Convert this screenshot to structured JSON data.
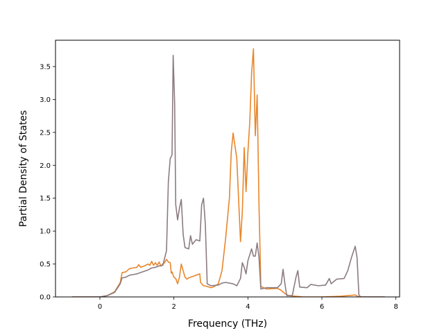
{
  "chart_data": {
    "type": "line",
    "xlabel": "Frequency (THz)",
    "ylabel": "Partial Density of States",
    "xlim": [
      -1.2,
      8.1
    ],
    "ylim": [
      0,
      3.9
    ],
    "x_ticks": [
      0,
      2,
      4,
      6,
      8
    ],
    "y_ticks": [
      0.0,
      0.5,
      1.0,
      1.5,
      2.0,
      2.5,
      3.0,
      3.5
    ],
    "x_tick_labels": [
      "0",
      "2",
      "4",
      "6",
      "8"
    ],
    "y_tick_labels": [
      "0.0",
      "0.5",
      "1.0",
      "1.5",
      "2.0",
      "2.5",
      "3.0",
      "3.5"
    ],
    "grid": false,
    "legend": "none",
    "series": [
      {
        "color": "#e8862a",
        "points": [
          [
            -0.75,
            0.0
          ],
          [
            0.0,
            0.0
          ],
          [
            0.2,
            0.02
          ],
          [
            0.4,
            0.08
          ],
          [
            0.55,
            0.22
          ],
          [
            0.6,
            0.37
          ],
          [
            0.7,
            0.38
          ],
          [
            0.8,
            0.43
          ],
          [
            0.9,
            0.44
          ],
          [
            1.0,
            0.45
          ],
          [
            1.05,
            0.49
          ],
          [
            1.1,
            0.45
          ],
          [
            1.2,
            0.47
          ],
          [
            1.3,
            0.5
          ],
          [
            1.35,
            0.48
          ],
          [
            1.4,
            0.54
          ],
          [
            1.45,
            0.48
          ],
          [
            1.5,
            0.52
          ],
          [
            1.55,
            0.48
          ],
          [
            1.6,
            0.53
          ],
          [
            1.65,
            0.47
          ],
          [
            1.7,
            0.5
          ],
          [
            1.75,
            0.52
          ],
          [
            1.8,
            0.57
          ],
          [
            1.85,
            0.53
          ],
          [
            1.9,
            0.52
          ],
          [
            1.93,
            0.36
          ],
          [
            1.95,
            0.38
          ],
          [
            2.0,
            0.3
          ],
          [
            2.05,
            0.28
          ],
          [
            2.1,
            0.2
          ],
          [
            2.15,
            0.3
          ],
          [
            2.2,
            0.5
          ],
          [
            2.25,
            0.4
          ],
          [
            2.3,
            0.3
          ],
          [
            2.35,
            0.27
          ],
          [
            2.4,
            0.29
          ],
          [
            2.5,
            0.31
          ],
          [
            2.6,
            0.33
          ],
          [
            2.7,
            0.35
          ],
          [
            2.72,
            0.22
          ],
          [
            2.8,
            0.17
          ],
          [
            2.9,
            0.16
          ],
          [
            3.0,
            0.14
          ],
          [
            3.1,
            0.16
          ],
          [
            3.2,
            0.2
          ],
          [
            3.3,
            0.4
          ],
          [
            3.4,
            0.9
          ],
          [
            3.5,
            1.5
          ],
          [
            3.55,
            2.2
          ],
          [
            3.6,
            2.49
          ],
          [
            3.7,
            2.1
          ],
          [
            3.8,
            0.84
          ],
          [
            3.85,
            1.3
          ],
          [
            3.9,
            2.27
          ],
          [
            3.95,
            1.6
          ],
          [
            4.0,
            2.2
          ],
          [
            4.05,
            2.65
          ],
          [
            4.1,
            3.4
          ],
          [
            4.15,
            3.77
          ],
          [
            4.2,
            2.45
          ],
          [
            4.25,
            3.07
          ],
          [
            4.3,
            1.4
          ],
          [
            4.35,
            0.16
          ],
          [
            4.5,
            0.12
          ],
          [
            4.8,
            0.13
          ],
          [
            4.9,
            0.1
          ],
          [
            5.0,
            0.05
          ],
          [
            5.1,
            0.02
          ],
          [
            5.5,
            0.0
          ],
          [
            6.0,
            0.0
          ],
          [
            6.5,
            0.01
          ],
          [
            6.9,
            0.03
          ],
          [
            7.0,
            0.0
          ],
          [
            7.7,
            0.0
          ]
        ]
      },
      {
        "color": "#8b7b80",
        "points": [
          [
            -0.75,
            0.0
          ],
          [
            0.0,
            0.0
          ],
          [
            0.2,
            0.02
          ],
          [
            0.4,
            0.07
          ],
          [
            0.55,
            0.2
          ],
          [
            0.6,
            0.29
          ],
          [
            0.7,
            0.3
          ],
          [
            0.8,
            0.33
          ],
          [
            0.9,
            0.34
          ],
          [
            1.0,
            0.35
          ],
          [
            1.1,
            0.37
          ],
          [
            1.2,
            0.39
          ],
          [
            1.3,
            0.41
          ],
          [
            1.4,
            0.44
          ],
          [
            1.5,
            0.45
          ],
          [
            1.6,
            0.47
          ],
          [
            1.7,
            0.48
          ],
          [
            1.8,
            0.7
          ],
          [
            1.85,
            1.75
          ],
          [
            1.9,
            2.1
          ],
          [
            1.95,
            2.16
          ],
          [
            1.98,
            3.67
          ],
          [
            2.02,
            2.95
          ],
          [
            2.05,
            1.4
          ],
          [
            2.1,
            1.17
          ],
          [
            2.15,
            1.35
          ],
          [
            2.2,
            1.48
          ],
          [
            2.25,
            0.95
          ],
          [
            2.3,
            0.75
          ],
          [
            2.4,
            0.73
          ],
          [
            2.45,
            0.93
          ],
          [
            2.5,
            0.8
          ],
          [
            2.6,
            0.87
          ],
          [
            2.7,
            0.85
          ],
          [
            2.75,
            1.4
          ],
          [
            2.8,
            1.5
          ],
          [
            2.85,
            1.1
          ],
          [
            2.9,
            0.2
          ],
          [
            3.0,
            0.17
          ],
          [
            3.2,
            0.18
          ],
          [
            3.3,
            0.21
          ],
          [
            3.4,
            0.22
          ],
          [
            3.6,
            0.2
          ],
          [
            3.7,
            0.17
          ],
          [
            3.8,
            0.28
          ],
          [
            3.85,
            0.52
          ],
          [
            3.9,
            0.45
          ],
          [
            3.95,
            0.35
          ],
          [
            4.0,
            0.55
          ],
          [
            4.1,
            0.73
          ],
          [
            4.15,
            0.62
          ],
          [
            4.2,
            0.62
          ],
          [
            4.25,
            0.82
          ],
          [
            4.3,
            0.6
          ],
          [
            4.35,
            0.12
          ],
          [
            4.5,
            0.14
          ],
          [
            4.8,
            0.14
          ],
          [
            4.9,
            0.2
          ],
          [
            4.95,
            0.42
          ],
          [
            5.0,
            0.2
          ],
          [
            5.05,
            0.02
          ],
          [
            5.2,
            0.02
          ],
          [
            5.3,
            0.3
          ],
          [
            5.35,
            0.4
          ],
          [
            5.4,
            0.15
          ],
          [
            5.6,
            0.14
          ],
          [
            5.7,
            0.19
          ],
          [
            5.9,
            0.17
          ],
          [
            6.1,
            0.18
          ],
          [
            6.2,
            0.28
          ],
          [
            6.25,
            0.2
          ],
          [
            6.4,
            0.27
          ],
          [
            6.6,
            0.28
          ],
          [
            6.7,
            0.4
          ],
          [
            6.8,
            0.6
          ],
          [
            6.9,
            0.77
          ],
          [
            6.95,
            0.6
          ],
          [
            7.0,
            0.03
          ],
          [
            7.05,
            0.0
          ],
          [
            7.7,
            0.0
          ]
        ]
      }
    ]
  }
}
